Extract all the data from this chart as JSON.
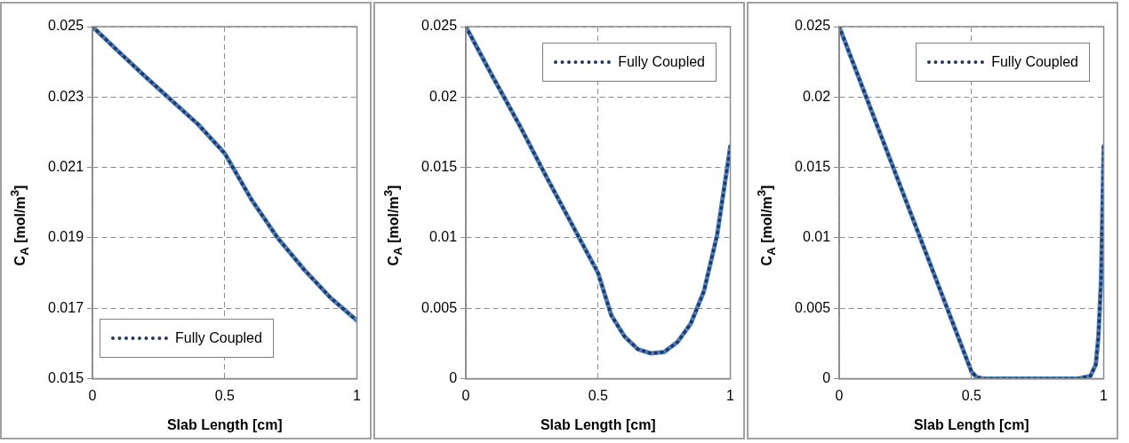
{
  "chart_data": [
    {
      "type": "line",
      "xlabel": "Slab Length [cm]",
      "ylabel": "C$_{A}$ [mol/m$^{3}$]",
      "xlim": [
        0,
        1
      ],
      "xticks": [
        0,
        0.5,
        1
      ],
      "ylim": [
        0.015,
        0.025
      ],
      "yticks": [
        0.015,
        0.017,
        0.019,
        0.021,
        0.023,
        0.025
      ],
      "grid": true,
      "legend": "bottom left",
      "x": [
        0,
        0.1,
        0.2,
        0.3,
        0.4,
        0.5,
        0.6,
        0.7,
        0.8,
        0.9,
        1
      ],
      "series": [
        {
          "color": "#4f81bd",
          "line_style": "solid",
          "values": [
            0.025,
            0.02428,
            0.02358,
            0.0229,
            0.02222,
            0.0214,
            0.0201,
            0.019,
            0.0181,
            0.0173,
            0.01665
          ]
        },
        {
          "name": "Fully Coupled",
          "color": "#1f3864",
          "line_style": "dotted",
          "values": [
            0.025,
            0.02428,
            0.02358,
            0.0229,
            0.02222,
            0.0214,
            0.0201,
            0.019,
            0.0181,
            0.0173,
            0.01665
          ]
        }
      ]
    },
    {
      "type": "line",
      "xlabel": "Slab Length [cm]",
      "ylabel": "C$_{A}$ [mol/m$^{3}$]",
      "xlim": [
        0,
        1
      ],
      "xticks": [
        0,
        0.5,
        1
      ],
      "ylim": [
        0,
        0.025
      ],
      "yticks": [
        0,
        0.005,
        0.01,
        0.015,
        0.02,
        0.025
      ],
      "grid": true,
      "legend": "top right",
      "x": [
        0,
        0.1,
        0.2,
        0.3,
        0.4,
        0.5,
        0.55,
        0.6,
        0.65,
        0.7,
        0.75,
        0.8,
        0.85,
        0.9,
        0.95,
        1
      ],
      "series": [
        {
          "color": "#4f81bd",
          "line_style": "solid",
          "values": [
            0.025,
            0.0215,
            0.0181,
            0.0145,
            0.011,
            0.0075,
            0.0045,
            0.003,
            0.0021,
            0.0018,
            0.0019,
            0.0026,
            0.0039,
            0.0062,
            0.0102,
            0.0165
          ]
        },
        {
          "name": "Fully Coupled",
          "color": "#1f3864",
          "line_style": "dotted",
          "values": [
            0.025,
            0.0215,
            0.0181,
            0.0145,
            0.011,
            0.0075,
            0.0045,
            0.003,
            0.0021,
            0.0018,
            0.0019,
            0.0026,
            0.0039,
            0.0062,
            0.0102,
            0.0165
          ]
        }
      ]
    },
    {
      "type": "line",
      "xlabel": "Slab Length [cm]",
      "ylabel": "C$_{A}$ [mol/m$^{3}$]",
      "xlim": [
        0,
        1
      ],
      "xticks": [
        0,
        0.5,
        1
      ],
      "ylim": [
        0,
        0.025
      ],
      "yticks": [
        0,
        0.005,
        0.01,
        0.015,
        0.02,
        0.025
      ],
      "grid": true,
      "legend": "top right",
      "x": [
        0,
        0.1,
        0.2,
        0.3,
        0.4,
        0.5,
        0.52,
        0.55,
        0.9,
        0.95,
        0.97,
        0.98,
        0.99,
        1
      ],
      "series": [
        {
          "color": "#4f81bd",
          "line_style": "solid",
          "values": [
            0.025,
            0.0201,
            0.0152,
            0.0103,
            0.0054,
            0.0005,
            0.0001,
            0,
            0,
            0.0002,
            0.001,
            0.003,
            0.007,
            0.0165
          ]
        },
        {
          "name": "Fully Coupled",
          "color": "#1f3864",
          "line_style": "dotted",
          "values": [
            0.025,
            0.0201,
            0.0152,
            0.0103,
            0.0054,
            0.0005,
            0.0001,
            0,
            0,
            0.0002,
            0.001,
            0.003,
            0.007,
            0.0165
          ]
        }
      ]
    }
  ]
}
